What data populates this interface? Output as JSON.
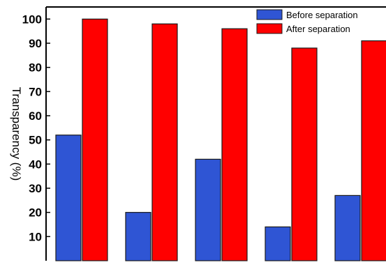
{
  "chart_data": {
    "type": "bar",
    "title": "",
    "xlabel": "",
    "ylabel": "Transparency (%)",
    "ylim": [
      0,
      105
    ],
    "yticks": [
      10,
      20,
      30,
      40,
      50,
      60,
      70,
      80,
      90,
      100
    ],
    "categories": [
      "",
      "",
      "",
      "",
      ""
    ],
    "series": [
      {
        "name": "Before separation",
        "color": "#2f55d4",
        "values": [
          52,
          20,
          42,
          14,
          27
        ]
      },
      {
        "name": "After separation",
        "color": "#ff0000",
        "values": [
          100,
          98,
          96,
          88,
          91
        ]
      }
    ],
    "legend": "top-right",
    "grid": false
  }
}
